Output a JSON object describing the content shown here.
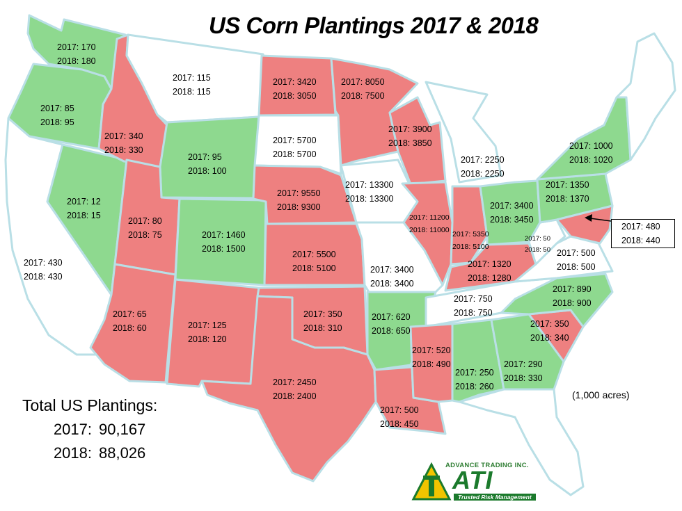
{
  "title": "US Corn Plantings 2017 & 2018",
  "units": "(1,000 acres)",
  "totals": {
    "label": "Total US Plantings:",
    "y2017": "2017:",
    "v2017": "90,167",
    "y2018": "2018:",
    "v2018": "88,026"
  },
  "colors": {
    "increase": "#8ed98f",
    "decrease": "#ee8080",
    "unchanged": "#ffffff",
    "border": "#b9dfe6"
  },
  "states": {
    "wa": {
      "l1": "2017: 170",
      "l2": "2018: 180",
      "change": "increase"
    },
    "or": {
      "l1": "2017: 85",
      "l2": "2018: 95",
      "change": "increase"
    },
    "ca": {
      "l1": "2017: 430",
      "l2": "2018: 430",
      "change": "unchanged"
    },
    "nv": {
      "l1": "2017: 12",
      "l2": "2018: 15",
      "change": "increase"
    },
    "id": {
      "l1": "2017: 340",
      "l2": "2018: 330",
      "change": "decrease"
    },
    "mt": {
      "l1": "2017: 115",
      "l2": "2018: 115",
      "change": "unchanged"
    },
    "wy": {
      "l1": "2017: 95",
      "l2": "2018: 100",
      "change": "increase"
    },
    "ut": {
      "l1": "2017: 80",
      "l2": "2018: 75",
      "change": "decrease"
    },
    "az": {
      "l1": "2017: 65",
      "l2": "2018: 60",
      "change": "decrease"
    },
    "co": {
      "l1": "2017: 1460",
      "l2": "2018: 1500",
      "change": "increase"
    },
    "nm": {
      "l1": "2017: 125",
      "l2": "2018: 120",
      "change": "decrease"
    },
    "nd": {
      "l1": "2017: 3420",
      "l2": "2018: 3050",
      "change": "decrease"
    },
    "sd": {
      "l1": "2017: 5700",
      "l2": "2018: 5700",
      "change": "unchanged"
    },
    "ne": {
      "l1": "2017: 9550",
      "l2": "2018: 9300",
      "change": "decrease"
    },
    "ks": {
      "l1": "2017: 5500",
      "l2": "2018: 5100",
      "change": "decrease"
    },
    "ok": {
      "l1": "2017: 350",
      "l2": "2018: 310",
      "change": "decrease"
    },
    "tx": {
      "l1": "2017: 2450",
      "l2": "2018: 2400",
      "change": "decrease"
    },
    "mn": {
      "l1": "2017: 8050",
      "l2": "2018: 7500",
      "change": "decrease"
    },
    "ia": {
      "l1": "2017: 13300",
      "l2": "2018: 13300",
      "change": "unchanged"
    },
    "mo": {
      "l1": "2017: 3400",
      "l2": "2018: 3400",
      "change": "unchanged"
    },
    "ar": {
      "l1": "2017: 620",
      "l2": "2018: 650",
      "change": "increase"
    },
    "la": {
      "l1": "2017: 500",
      "l2": "2018: 450",
      "change": "decrease"
    },
    "wi": {
      "l1": "2017: 3900",
      "l2": "2018: 3850",
      "change": "decrease"
    },
    "il": {
      "l1": "2017: 11200",
      "l2": "2018: 11000",
      "change": "decrease"
    },
    "mi": {
      "l1": "2017: 2250",
      "l2": "2018: 2250",
      "change": "unchanged"
    },
    "in": {
      "l1": "2017: 5350",
      "l2": "2018: 5100",
      "change": "decrease"
    },
    "oh": {
      "l1": "2017: 3400",
      "l2": "2018: 3450",
      "change": "increase"
    },
    "ky": {
      "l1": "2017: 1320",
      "l2": "2018: 1280",
      "change": "decrease"
    },
    "tn": {
      "l1": "2017: 750",
      "l2": "2018: 750",
      "change": "unchanged"
    },
    "ms": {
      "l1": "2017: 520",
      "l2": "2018: 490",
      "change": "decrease"
    },
    "al": {
      "l1": "2017: 250",
      "l2": "2018: 260",
      "change": "increase"
    },
    "ga": {
      "l1": "2017: 290",
      "l2": "2018: 330",
      "change": "increase"
    },
    "sc": {
      "l1": "2017: 350",
      "l2": "2018: 340",
      "change": "decrease"
    },
    "nc": {
      "l1": "2017: 890",
      "l2": "2018: 900",
      "change": "increase"
    },
    "va": {
      "l1": "2017: 500",
      "l2": "2018: 500",
      "change": "unchanged"
    },
    "wv": {
      "l1": "2017: 50",
      "l2": "2018: 50",
      "change": "unchanged"
    },
    "pa": {
      "l1": "2017: 1350",
      "l2": "2018: 1370",
      "change": "increase"
    },
    "ny": {
      "l1": "2017: 1000",
      "l2": "2018: 1020",
      "change": "increase"
    },
    "md": {
      "l1": "2017: 480",
      "l2": "2018: 440",
      "change": "decrease"
    }
  },
  "logo": {
    "top": "ADVANCE TRADING INC.",
    "mark": "ATI",
    "tagline": "Trusted Risk Management"
  }
}
